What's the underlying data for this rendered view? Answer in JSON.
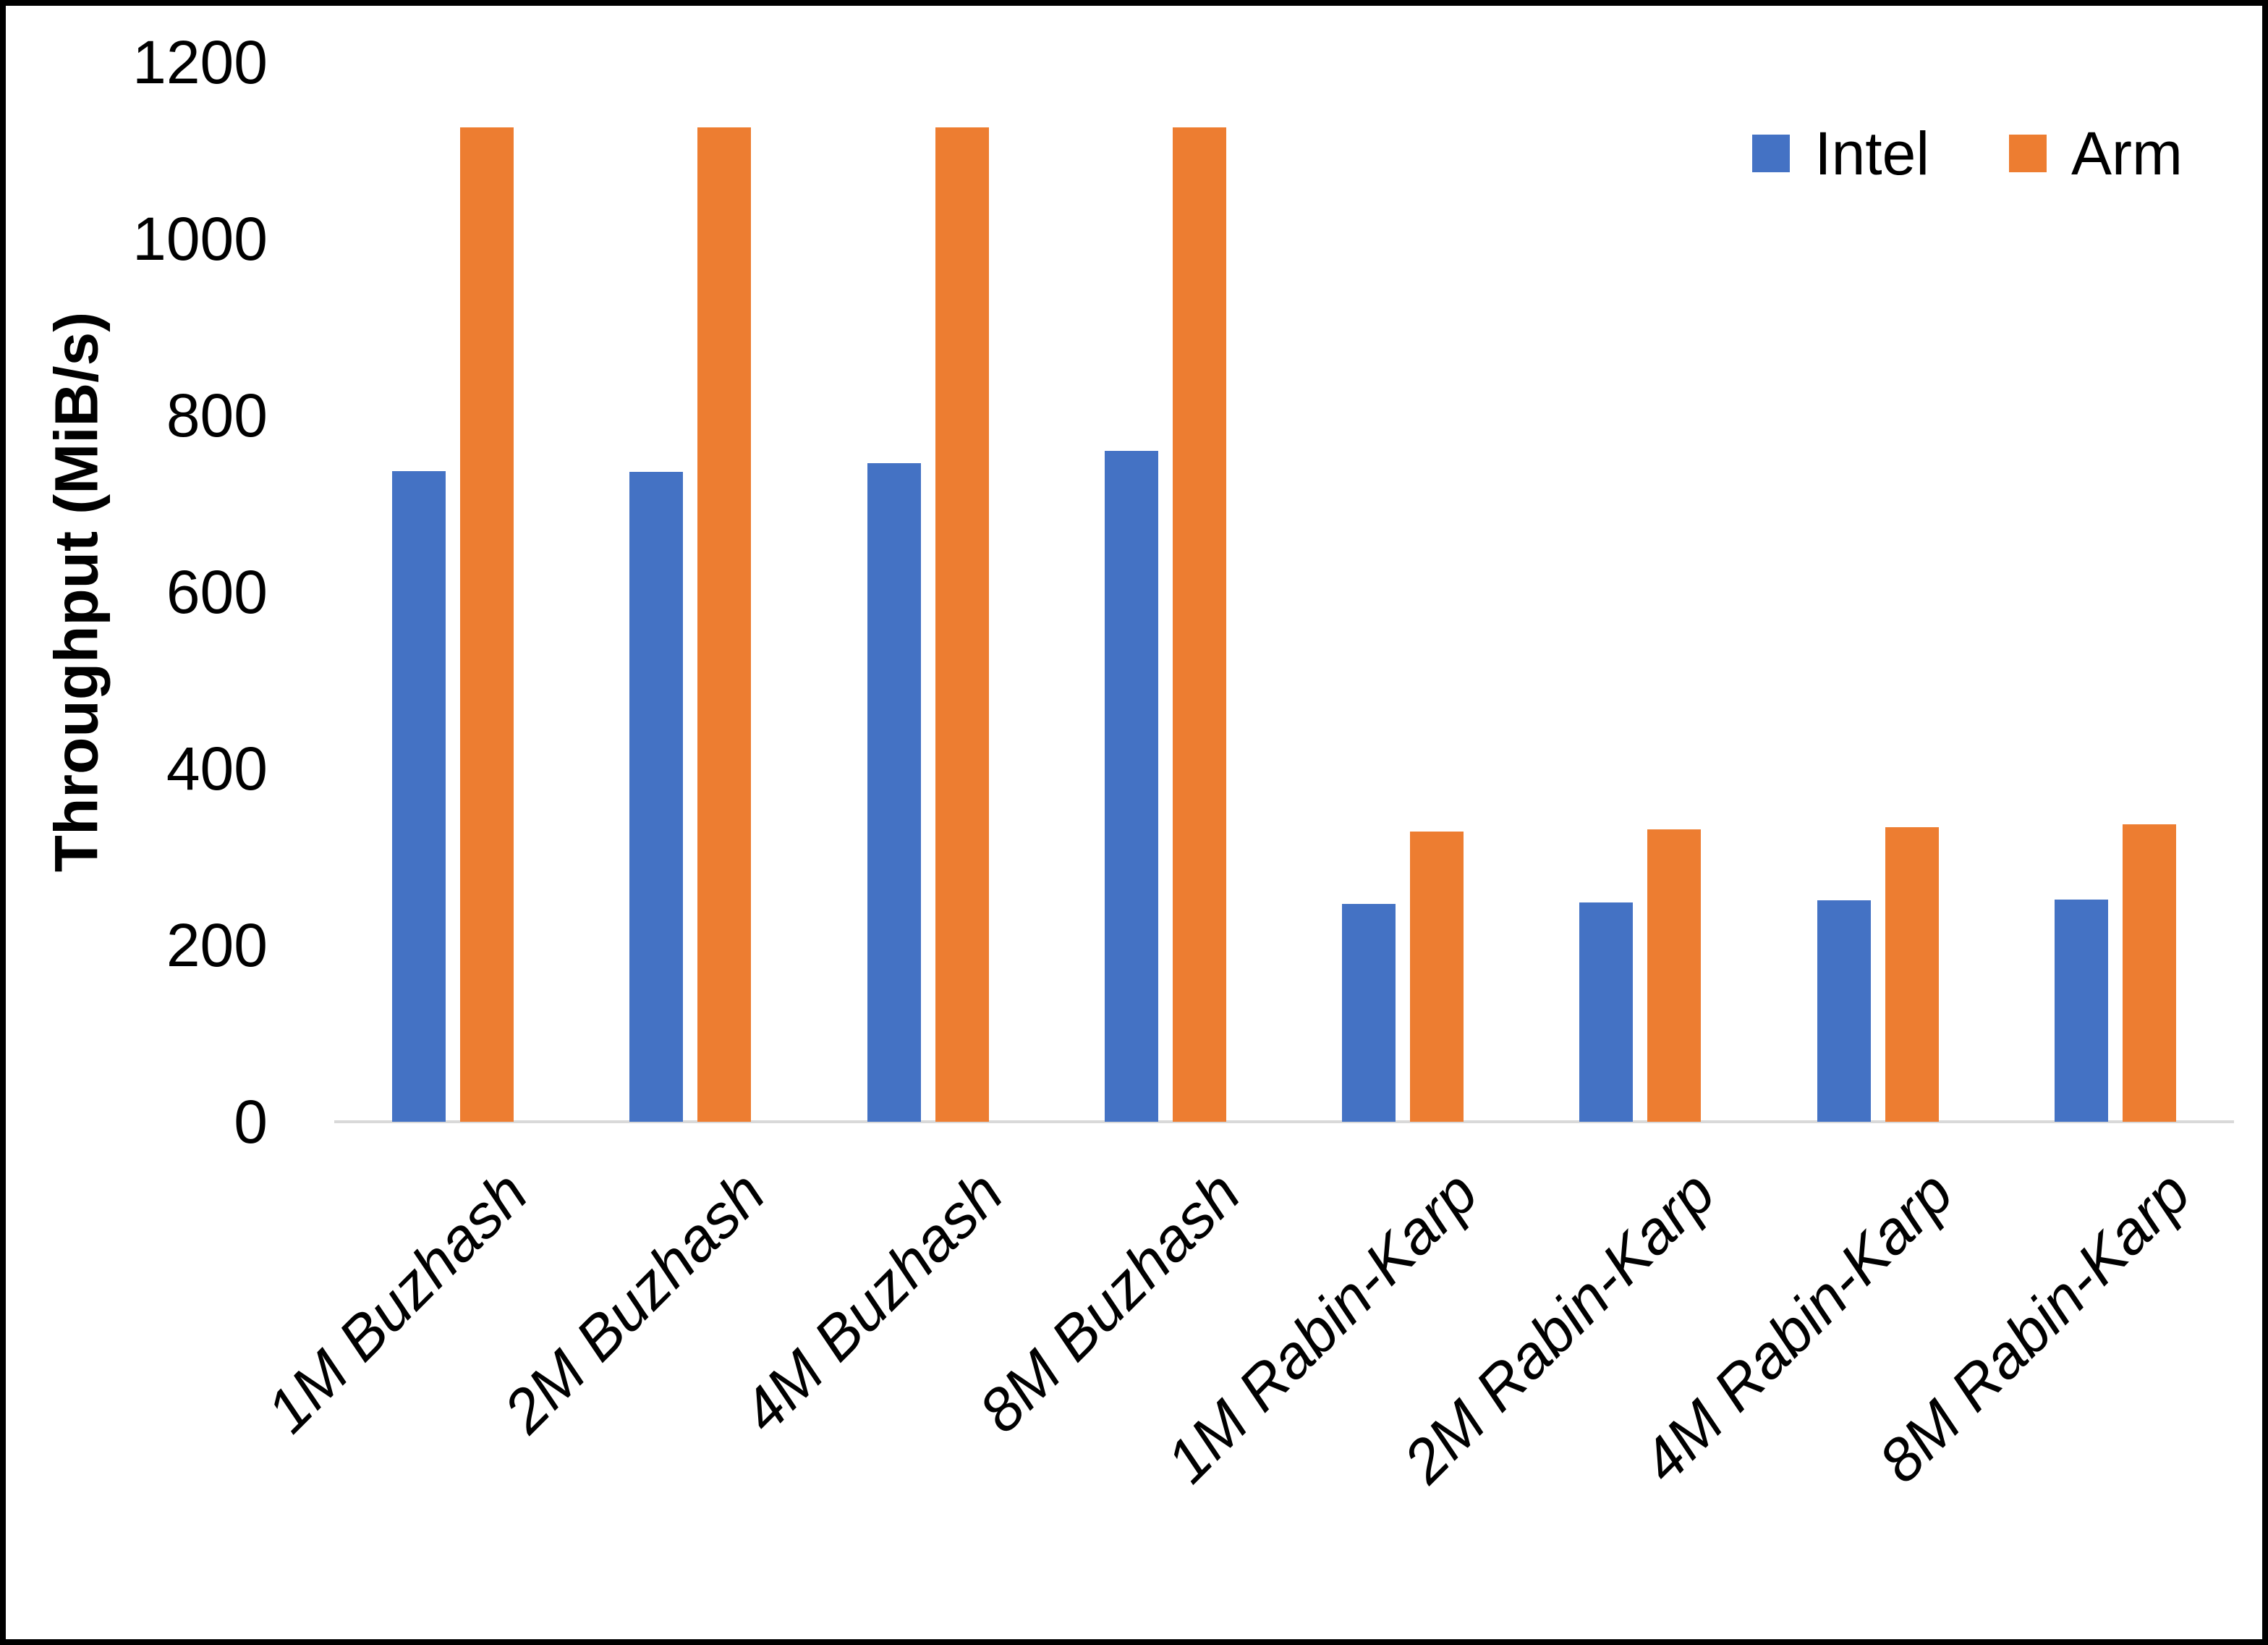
{
  "chart_data": {
    "type": "bar",
    "title": "",
    "xlabel": "",
    "ylabel": "Throughput (MiB/s)",
    "ylim": [
      0,
      1200
    ],
    "yticks": [
      0,
      200,
      400,
      600,
      800,
      1000,
      1200
    ],
    "grid": false,
    "legend_position": "top-right",
    "categories": [
      "1M Buzhash",
      "2M Buzhash",
      "4M Buzhash",
      "8M Buzhash",
      "1M Rabin-Karp",
      "2M Rabin-Karp",
      "4M Rabin-Karp",
      "8M Rabin-Karp"
    ],
    "series": [
      {
        "name": "Intel",
        "color": "#4472C4",
        "values": [
          737,
          736,
          746,
          760,
          247,
          248,
          251,
          252
        ]
      },
      {
        "name": "Arm",
        "color": "#ED7D31",
        "values": [
          1126,
          1126,
          1126,
          1126,
          329,
          331,
          334,
          337
        ]
      }
    ]
  },
  "colors": {
    "intel": "#4472C4",
    "arm": "#ED7D31",
    "axis_line": "#d9d9d9",
    "text": "#000000"
  },
  "legend": {
    "items": [
      {
        "label": "Intel",
        "color": "#4472C4"
      },
      {
        "label": "Arm",
        "color": "#ED7D31"
      }
    ]
  }
}
